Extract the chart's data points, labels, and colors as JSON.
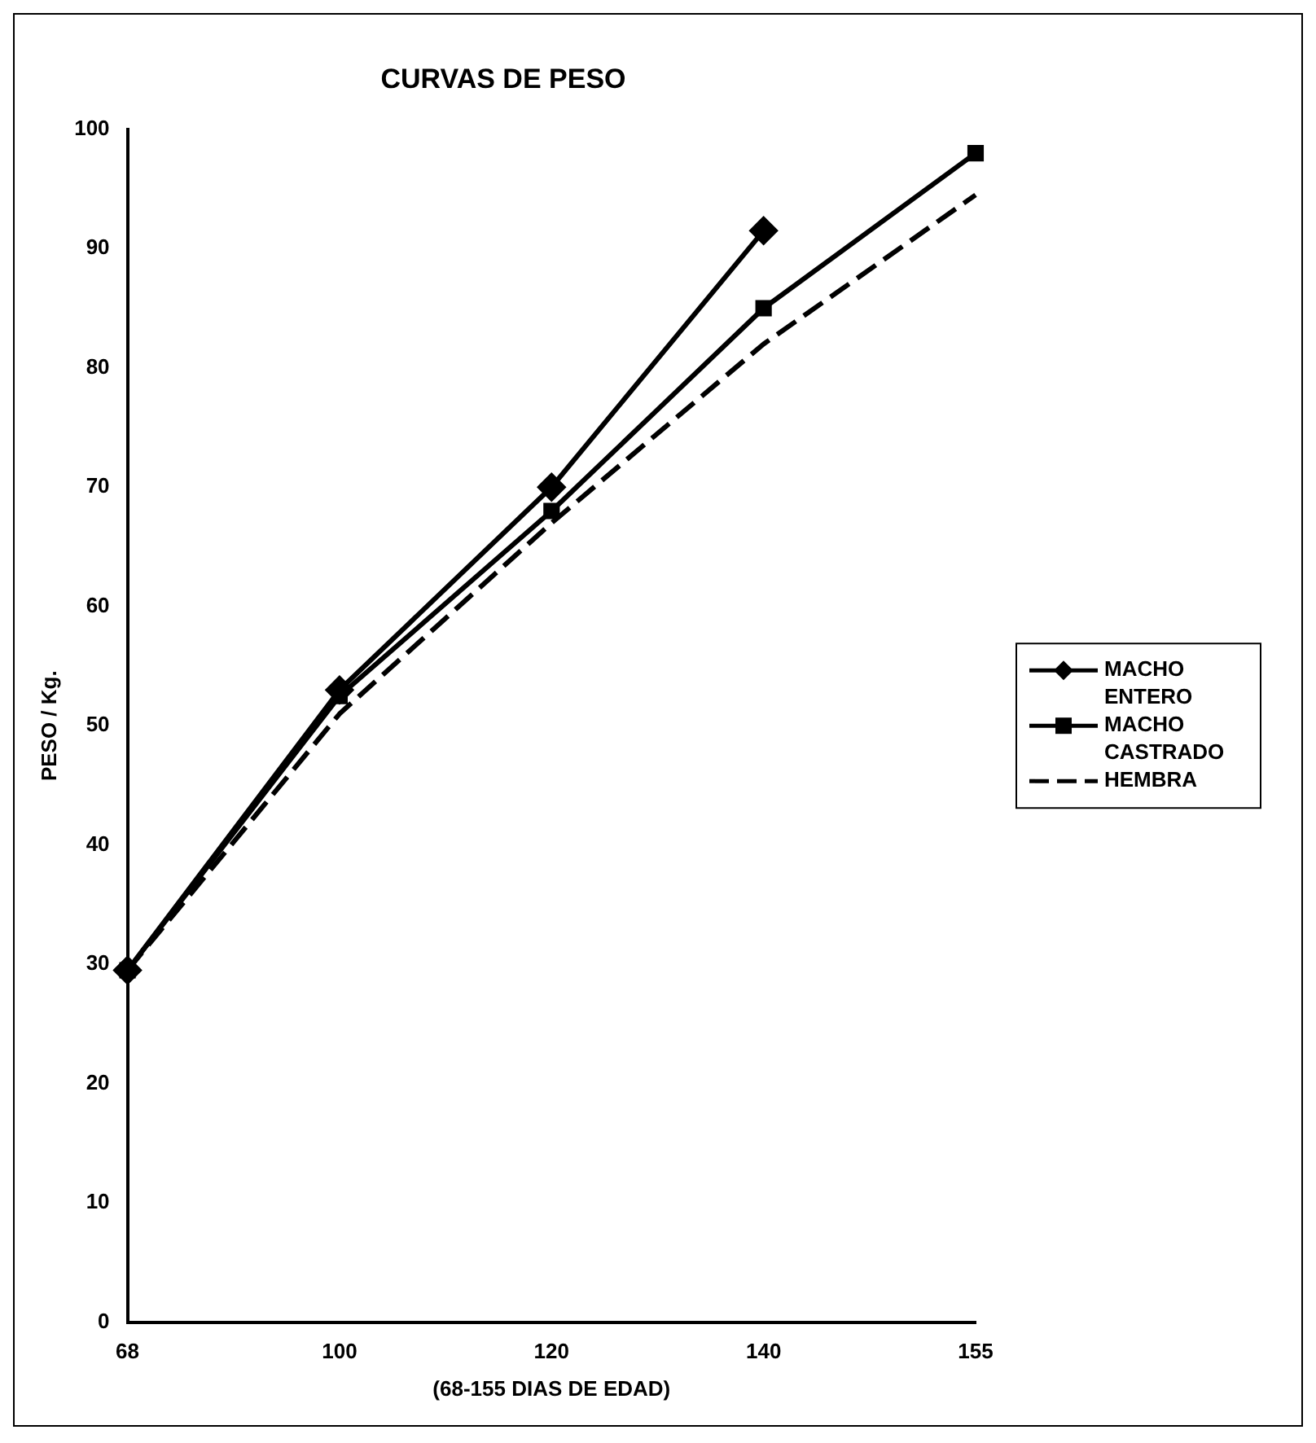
{
  "chart_data": {
    "type": "line",
    "title": "CURVAS DE PESO",
    "xlabel": "(68-155 DIAS DE EDAD)",
    "ylabel": "PESO / Kg.",
    "categories": [
      "68",
      "100",
      "120",
      "140",
      "155"
    ],
    "series": [
      {
        "name": "MACHO ENTERO",
        "color": "#000000",
        "marker": "diamond",
        "line_style": "solid",
        "values": [
          29.5,
          53,
          70,
          91.5,
          null
        ]
      },
      {
        "name": "MACHO CASTRADO",
        "color": "#000000",
        "marker": "square",
        "line_style": "solid",
        "values": [
          29.5,
          52.5,
          68,
          85,
          98
        ]
      },
      {
        "name": "HEMBRA",
        "color": "#000000",
        "marker": "none",
        "line_style": "dashed",
        "values": [
          29.5,
          51,
          67,
          82,
          94.5
        ]
      }
    ],
    "ylim": [
      0,
      100
    ],
    "yticks": [
      0,
      10,
      20,
      30,
      40,
      50,
      60,
      70,
      80,
      90,
      100
    ],
    "grid": false,
    "legend": "right"
  }
}
